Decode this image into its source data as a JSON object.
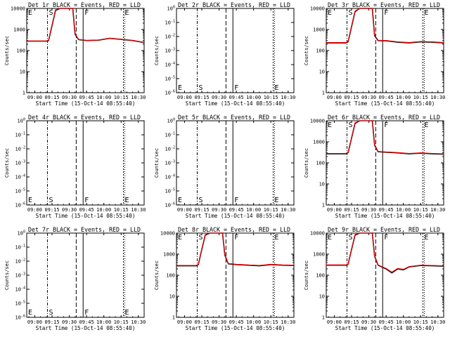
{
  "page": {
    "timestamp": "15-Oct-14 08:55:40"
  },
  "axes": {
    "xlabel": "Start Time (15-Oct-14 08:55:40)",
    "ylabel": "Counts/sec",
    "xticks": [
      "09:00",
      "09:15",
      "09:30",
      "09:45",
      "10:00",
      "10:15",
      "10:30"
    ],
    "yticks_log": [
      "1",
      "10",
      "100",
      "1000",
      "10000"
    ],
    "yticks_empty": [
      "10^0",
      "10^-1",
      "10^-2",
      "10^-3",
      "10^-4",
      "10^-5",
      "10^-6"
    ]
  },
  "markers": {
    "labels": [
      "E",
      "S",
      "F",
      "E"
    ]
  },
  "colors": {
    "events": "#000000",
    "lld": "#ff0000"
  },
  "chart_data": [
    {
      "type": "line",
      "title": "Det 1r BLACK = Events, RED = LLD",
      "yscale": "log",
      "ylim": [
        1,
        10000
      ],
      "xlim": [
        "08:53",
        "10:35"
      ],
      "markers_t": [
        "08:53",
        "09:11",
        "09:36",
        "09:42",
        "10:17"
      ],
      "series": [
        {
          "name": "Events",
          "color": "#000000",
          "x": [
            "08:53",
            "09:10",
            "09:12",
            "09:14",
            "09:18",
            "09:22",
            "09:28",
            "09:33",
            "09:35",
            "09:38",
            "09:45",
            "09:55",
            "10:05",
            "10:15",
            "10:25",
            "10:35"
          ],
          "y": [
            280,
            280,
            300,
            900,
            8000,
            10000,
            10000,
            10000,
            600,
            330,
            300,
            310,
            380,
            340,
            300,
            240
          ]
        },
        {
          "name": "LLD",
          "color": "#ff0000",
          "x": [
            "08:53",
            "09:10",
            "09:12",
            "09:14",
            "09:18",
            "09:22",
            "09:28",
            "09:33",
            "09:35",
            "09:38",
            "09:45",
            "09:55",
            "10:05",
            "10:15",
            "10:25",
            "10:35"
          ],
          "y": [
            285,
            285,
            310,
            950,
            8500,
            10000,
            10000,
            10000,
            650,
            340,
            305,
            315,
            385,
            345,
            305,
            245
          ]
        }
      ]
    },
    {
      "type": "line",
      "title": "Det 2r BLACK = Events, RED = LLD",
      "yscale": "log",
      "ylim": [
        1e-06,
        1
      ],
      "empty": true,
      "xlim": [
        "08:53",
        "10:35"
      ],
      "markers_t": [
        "08:53",
        "09:11",
        "09:36",
        "09:42",
        "10:17"
      ],
      "series": []
    },
    {
      "type": "line",
      "title": "Det 3r BLACK = Events, RED = LLD",
      "yscale": "log",
      "ylim": [
        1,
        10000
      ],
      "xlim": [
        "08:53",
        "10:35"
      ],
      "markers_t": [
        "08:53",
        "09:11",
        "09:36",
        "09:42",
        "10:17"
      ],
      "series": [
        {
          "name": "Events",
          "color": "#000000",
          "x": [
            "08:53",
            "09:10",
            "09:12",
            "09:14",
            "09:18",
            "09:22",
            "09:28",
            "09:33",
            "09:35",
            "09:38",
            "09:45",
            "09:55",
            "10:05",
            "10:15",
            "10:25",
            "10:35"
          ],
          "y": [
            230,
            230,
            260,
            800,
            7000,
            10000,
            10000,
            10000,
            500,
            300,
            290,
            250,
            230,
            260,
            250,
            230
          ]
        },
        {
          "name": "LLD",
          "color": "#ff0000",
          "x": [
            "08:53",
            "09:10",
            "09:12",
            "09:14",
            "09:18",
            "09:22",
            "09:28",
            "09:33",
            "09:35",
            "09:38",
            "09:45",
            "09:55",
            "10:05",
            "10:15",
            "10:25",
            "10:35"
          ],
          "y": [
            240,
            240,
            270,
            850,
            7500,
            10000,
            10000,
            10000,
            550,
            310,
            300,
            260,
            240,
            270,
            260,
            240
          ]
        }
      ]
    },
    {
      "type": "line",
      "title": "Det 4r BLACK = Events, RED = LLD",
      "yscale": "log",
      "ylim": [
        1e-06,
        1
      ],
      "empty": true,
      "xlim": [
        "08:53",
        "10:35"
      ],
      "markers_t": [
        "08:53",
        "09:11",
        "09:36",
        "09:42",
        "10:17"
      ],
      "series": []
    },
    {
      "type": "line",
      "title": "Det 5r BLACK = Events, RED = LLD",
      "yscale": "log",
      "ylim": [
        1e-06,
        1
      ],
      "empty": true,
      "xlim": [
        "08:53",
        "10:35"
      ],
      "markers_t": [
        "08:53",
        "09:11",
        "09:36",
        "09:42",
        "10:17"
      ],
      "series": []
    },
    {
      "type": "line",
      "title": "Det 6r BLACK = Events, RED = LLD",
      "yscale": "log",
      "ylim": [
        1,
        10000
      ],
      "xlim": [
        "08:53",
        "10:35"
      ],
      "markers_t": [
        "08:53",
        "09:11",
        "09:36",
        "09:42",
        "10:17"
      ],
      "series": [
        {
          "name": "Events",
          "color": "#000000",
          "x": [
            "08:53",
            "09:10",
            "09:12",
            "09:14",
            "09:18",
            "09:22",
            "09:28",
            "09:33",
            "09:35",
            "09:38",
            "09:45",
            "09:55",
            "10:05",
            "10:15",
            "10:25",
            "10:35"
          ],
          "y": [
            270,
            270,
            310,
            900,
            7500,
            10000,
            10000,
            10000,
            700,
            340,
            320,
            300,
            270,
            290,
            270,
            260
          ]
        },
        {
          "name": "LLD",
          "color": "#ff0000",
          "x": [
            "08:53",
            "09:10",
            "09:12",
            "09:14",
            "09:18",
            "09:22",
            "09:28",
            "09:33",
            "09:35",
            "09:38",
            "09:45",
            "09:55",
            "10:05",
            "10:15",
            "10:25",
            "10:35"
          ],
          "y": [
            280,
            280,
            320,
            950,
            8000,
            10000,
            10000,
            10000,
            750,
            350,
            330,
            310,
            280,
            300,
            280,
            270
          ]
        }
      ]
    },
    {
      "type": "line",
      "title": "Det 7r BLACK = Events, RED = LLD",
      "yscale": "log",
      "ylim": [
        1e-06,
        1
      ],
      "empty": true,
      "xlim": [
        "08:53",
        "10:35"
      ],
      "markers_t": [
        "08:53",
        "09:11",
        "09:36",
        "09:42",
        "10:17"
      ],
      "series": []
    },
    {
      "type": "line",
      "title": "Det 8r BLACK = Events, RED = LLD",
      "yscale": "log",
      "ylim": [
        1,
        10000
      ],
      "xlim": [
        "08:53",
        "10:35"
      ],
      "markers_t": [
        "08:53",
        "09:11",
        "09:36",
        "09:42",
        "10:17"
      ],
      "series": [
        {
          "name": "Events",
          "color": "#000000",
          "x": [
            "08:53",
            "09:10",
            "09:12",
            "09:14",
            "09:18",
            "09:22",
            "09:28",
            "09:33",
            "09:35",
            "09:38",
            "09:45",
            "09:55",
            "10:05",
            "10:15",
            "10:25",
            "10:35"
          ],
          "y": [
            280,
            280,
            320,
            1000,
            8000,
            10000,
            10000,
            10000,
            900,
            350,
            320,
            300,
            280,
            320,
            300,
            290
          ]
        },
        {
          "name": "LLD",
          "color": "#ff0000",
          "x": [
            "08:53",
            "09:10",
            "09:12",
            "09:14",
            "09:18",
            "09:22",
            "09:28",
            "09:33",
            "09:35",
            "09:38",
            "09:45",
            "09:55",
            "10:05",
            "10:15",
            "10:25",
            "10:35"
          ],
          "y": [
            290,
            290,
            330,
            1050,
            8500,
            10000,
            10000,
            10000,
            950,
            360,
            330,
            310,
            290,
            330,
            310,
            300
          ]
        }
      ]
    },
    {
      "type": "line",
      "title": "Det 9r BLACK = Events, RED = LLD",
      "yscale": "log",
      "ylim": [
        1,
        10000
      ],
      "xlim": [
        "08:53",
        "10:35"
      ],
      "markers_t": [
        "08:53",
        "09:11",
        "09:36",
        "09:42",
        "10:17"
      ],
      "series": [
        {
          "name": "Events",
          "color": "#000000",
          "x": [
            "08:53",
            "09:10",
            "09:12",
            "09:14",
            "09:18",
            "09:22",
            "09:28",
            "09:33",
            "09:35",
            "09:38",
            "09:45",
            "09:50",
            "09:55",
            "10:00",
            "10:05",
            "10:15",
            "10:25",
            "10:35"
          ],
          "y": [
            300,
            300,
            330,
            1000,
            8000,
            10000,
            10000,
            10000,
            800,
            300,
            200,
            130,
            200,
            180,
            250,
            290,
            280,
            270
          ]
        },
        {
          "name": "LLD",
          "color": "#ff0000",
          "x": [
            "08:53",
            "09:10",
            "09:12",
            "09:14",
            "09:18",
            "09:22",
            "09:28",
            "09:33",
            "09:35",
            "09:38",
            "09:45",
            "09:50",
            "09:55",
            "10:00",
            "10:05",
            "10:15",
            "10:25",
            "10:35"
          ],
          "y": [
            310,
            310,
            340,
            1050,
            8500,
            10000,
            10000,
            10000,
            850,
            310,
            210,
            140,
            210,
            190,
            260,
            300,
            290,
            280
          ]
        }
      ]
    }
  ]
}
